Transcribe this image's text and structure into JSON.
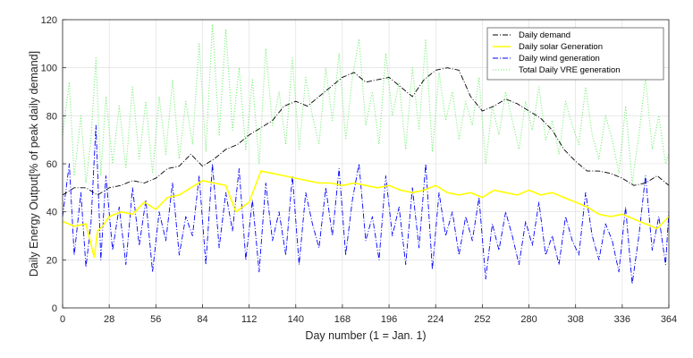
{
  "chart_data": {
    "type": "line",
    "title": "",
    "xlabel": "Day number (1 = Jan. 1)",
    "ylabel": "Daily Energy Output[% of peak daily demand]",
    "xlim": [
      0,
      364
    ],
    "ylim": [
      0,
      120
    ],
    "grid": true,
    "legend_position": "top-right",
    "xticks": [
      0,
      28,
      56,
      84,
      112,
      140,
      168,
      196,
      224,
      252,
      280,
      308,
      336,
      364
    ],
    "yticks": [
      0,
      20,
      40,
      60,
      80,
      100,
      120
    ],
    "xtick_labels": [
      "0",
      "28",
      "56",
      "84",
      "112",
      "140",
      "168",
      "196",
      "224",
      "252",
      "280",
      "308",
      "336",
      "364"
    ],
    "ytick_labels": [
      "0",
      "20",
      "40",
      "60",
      "80",
      "100",
      "120"
    ],
    "series": [
      {
        "name": "Daily demand",
        "color": "#000000",
        "style": "dashdot",
        "x": [
          0,
          7,
          14,
          21,
          28,
          35,
          42,
          49,
          56,
          63,
          70,
          77,
          84,
          91,
          98,
          105,
          112,
          119,
          126,
          133,
          140,
          147,
          154,
          161,
          168,
          175,
          182,
          189,
          196,
          203,
          210,
          217,
          224,
          231,
          238,
          245,
          252,
          259,
          266,
          273,
          280,
          287,
          294,
          301,
          308,
          315,
          322,
          329,
          336,
          343,
          350,
          357,
          364
        ],
        "values": [
          47,
          50,
          50,
          47,
          50,
          51,
          53,
          52,
          54,
          58,
          59,
          64,
          59,
          62,
          66,
          68,
          72,
          75,
          78,
          84,
          86,
          84,
          88,
          92,
          96,
          98,
          94,
          95,
          96,
          92,
          88,
          95,
          99,
          100,
          99,
          88,
          82,
          84,
          87,
          85,
          82,
          79,
          74,
          66,
          61,
          57,
          57,
          56,
          54,
          51,
          52,
          55,
          51
        ]
      },
      {
        "name": "Daily solar Generation",
        "color": "#ffff00",
        "style": "solid",
        "x": [
          0,
          7,
          14,
          19,
          21,
          24,
          28,
          35,
          42,
          49,
          56,
          63,
          70,
          77,
          84,
          91,
          98,
          104,
          112,
          119,
          126,
          133,
          140,
          147,
          154,
          161,
          168,
          175,
          182,
          189,
          196,
          203,
          210,
          217,
          224,
          231,
          238,
          245,
          252,
          259,
          266,
          273,
          280,
          287,
          294,
          301,
          308,
          315,
          322,
          329,
          336,
          343,
          350,
          357,
          364
        ],
        "values": [
          36,
          34,
          35,
          21,
          32,
          34,
          38,
          40,
          39,
          44,
          41,
          46,
          47,
          50,
          53,
          52,
          51,
          40,
          44,
          57,
          56,
          55,
          54,
          53,
          52,
          52,
          51,
          52,
          51,
          50,
          51,
          49,
          48,
          49,
          51,
          48,
          47,
          48,
          46,
          49,
          48,
          47,
          49,
          47,
          48,
          46,
          44,
          42,
          39,
          38,
          39,
          37,
          35,
          33,
          38
        ]
      },
      {
        "name": "Daily wind generation",
        "color": "#0000ff",
        "style": "dashdot",
        "x": [
          0,
          4,
          7,
          11,
          14,
          17,
          20,
          23,
          26,
          30,
          34,
          38,
          42,
          46,
          50,
          54,
          58,
          62,
          66,
          70,
          74,
          78,
          82,
          86,
          90,
          94,
          98,
          102,
          106,
          110,
          114,
          118,
          122,
          126,
          130,
          134,
          138,
          142,
          146,
          150,
          154,
          158,
          162,
          166,
          170,
          174,
          178,
          182,
          186,
          190,
          194,
          198,
          202,
          206,
          210,
          214,
          218,
          222,
          226,
          230,
          234,
          238,
          242,
          246,
          250,
          254,
          258,
          262,
          266,
          270,
          274,
          278,
          282,
          286,
          290,
          294,
          298,
          302,
          306,
          310,
          314,
          318,
          322,
          326,
          330,
          334,
          338,
          342,
          346,
          350,
          354,
          358,
          362,
          364
        ],
        "values": [
          38,
          60,
          22,
          48,
          17,
          35,
          76,
          20,
          55,
          24,
          42,
          18,
          50,
          26,
          45,
          15,
          40,
          28,
          52,
          22,
          38,
          30,
          55,
          18,
          60,
          25,
          48,
          32,
          58,
          20,
          45,
          15,
          52,
          28,
          40,
          22,
          55,
          18,
          48,
          35,
          25,
          50,
          30,
          58,
          22,
          45,
          60,
          28,
          38,
          20,
          55,
          30,
          42,
          18,
          50,
          25,
          60,
          16,
          48,
          30,
          40,
          22,
          38,
          28,
          46,
          12,
          35,
          24,
          40,
          30,
          18,
          36,
          26,
          44,
          22,
          30,
          18,
          38,
          28,
          22,
          48,
          30,
          20,
          35,
          28,
          15,
          42,
          10,
          30,
          55,
          24,
          38,
          18,
          40
        ]
      },
      {
        "name": "Total Daily VRE generation",
        "color": "#66ee66",
        "style": "dotted",
        "x": [
          0,
          4,
          7,
          11,
          14,
          17,
          20,
          23,
          26,
          30,
          34,
          38,
          42,
          46,
          50,
          54,
          58,
          62,
          66,
          70,
          74,
          78,
          82,
          86,
          90,
          94,
          98,
          102,
          106,
          110,
          114,
          118,
          122,
          126,
          130,
          134,
          138,
          142,
          146,
          150,
          154,
          158,
          162,
          166,
          170,
          174,
          178,
          182,
          186,
          190,
          194,
          198,
          202,
          206,
          210,
          214,
          218,
          222,
          226,
          230,
          234,
          238,
          242,
          246,
          250,
          254,
          258,
          262,
          266,
          270,
          274,
          278,
          282,
          286,
          290,
          294,
          298,
          302,
          306,
          310,
          314,
          318,
          322,
          326,
          330,
          334,
          338,
          342,
          346,
          350,
          354,
          358,
          362,
          364
        ],
        "values": [
          72,
          94,
          55,
          80,
          52,
          70,
          104,
          55,
          88,
          60,
          84,
          58,
          92,
          62,
          86,
          56,
          88,
          64,
          95,
          62,
          86,
          68,
          110,
          65,
          118,
          72,
          116,
          74,
          100,
          66,
          95,
          60,
          108,
          76,
          90,
          68,
          104,
          66,
          96,
          80,
          68,
          100,
          78,
          106,
          70,
          96,
          112,
          76,
          90,
          68,
          106,
          80,
          94,
          66,
          100,
          74,
          112,
          65,
          98,
          78,
          90,
          70,
          86,
          76,
          96,
          60,
          84,
          72,
          90,
          78,
          66,
          86,
          74,
          92,
          70,
          78,
          64,
          86,
          76,
          68,
          92,
          72,
          62,
          80,
          70,
          56,
          84,
          52,
          72,
          96,
          66,
          80,
          60,
          64
        ]
      }
    ]
  }
}
